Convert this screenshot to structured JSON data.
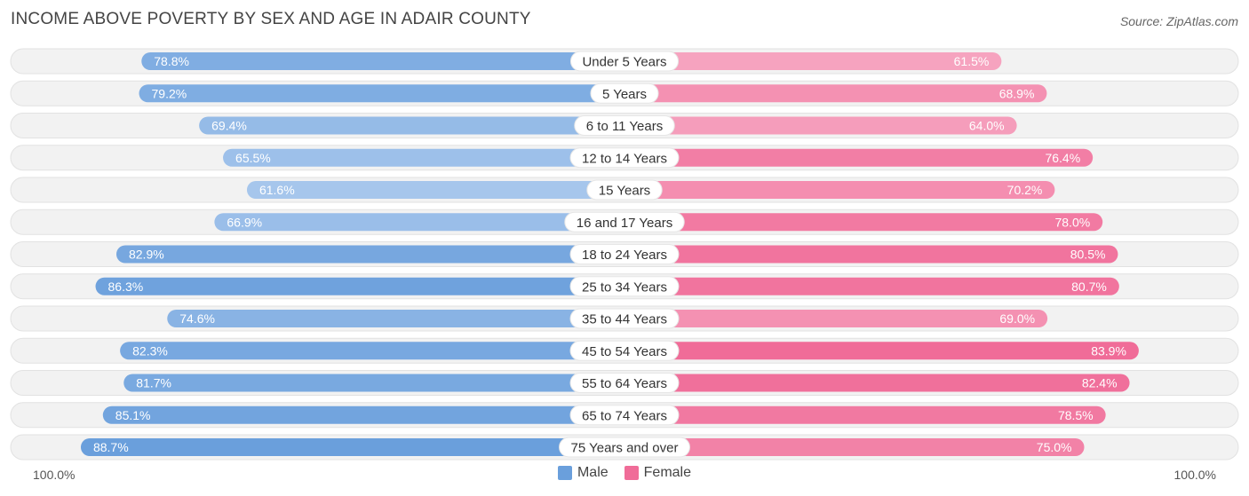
{
  "title": "INCOME ABOVE POVERTY BY SEX AND AGE IN ADAIR COUNTY",
  "source": "Source: ZipAtlas.com",
  "colors": {
    "male": "#6a9fdc",
    "male_light": "#a6c6ec",
    "female": "#f06c98",
    "female_light": "#f6a3bf"
  },
  "chart_data": {
    "type": "bar",
    "orientation": "horizontal-diverging",
    "title": "INCOME ABOVE POVERTY BY SEX AND AGE IN ADAIR COUNTY",
    "categories": [
      "Under 5 Years",
      "5 Years",
      "6 to 11 Years",
      "12 to 14 Years",
      "15 Years",
      "16 and 17 Years",
      "18 to 24 Years",
      "25 to 34 Years",
      "35 to 44 Years",
      "45 to 54 Years",
      "55 to 64 Years",
      "65 to 74 Years",
      "75 Years and over"
    ],
    "series": [
      {
        "name": "Male",
        "values": [
          78.8,
          79.2,
          69.4,
          65.5,
          61.6,
          66.9,
          82.9,
          86.3,
          74.6,
          82.3,
          81.7,
          85.1,
          88.7
        ]
      },
      {
        "name": "Female",
        "values": [
          61.5,
          68.9,
          64.0,
          76.4,
          70.2,
          78.0,
          80.5,
          80.7,
          69.0,
          83.9,
          82.4,
          78.5,
          75.0
        ]
      }
    ],
    "value_labels": {
      "male": [
        "78.8%",
        "79.2%",
        "69.4%",
        "65.5%",
        "61.6%",
        "66.9%",
        "82.9%",
        "86.3%",
        "74.6%",
        "82.3%",
        "81.7%",
        "85.1%",
        "88.7%"
      ],
      "female": [
        "61.5%",
        "68.9%",
        "64.0%",
        "76.4%",
        "70.2%",
        "78.0%",
        "80.5%",
        "80.7%",
        "69.0%",
        "83.9%",
        "82.4%",
        "78.5%",
        "75.0%"
      ]
    },
    "xlim": [
      0,
      100
    ],
    "axis_left_label": "100.0%",
    "axis_right_label": "100.0%",
    "legend": [
      "Male",
      "Female"
    ],
    "legend_position": "bottom-center"
  }
}
